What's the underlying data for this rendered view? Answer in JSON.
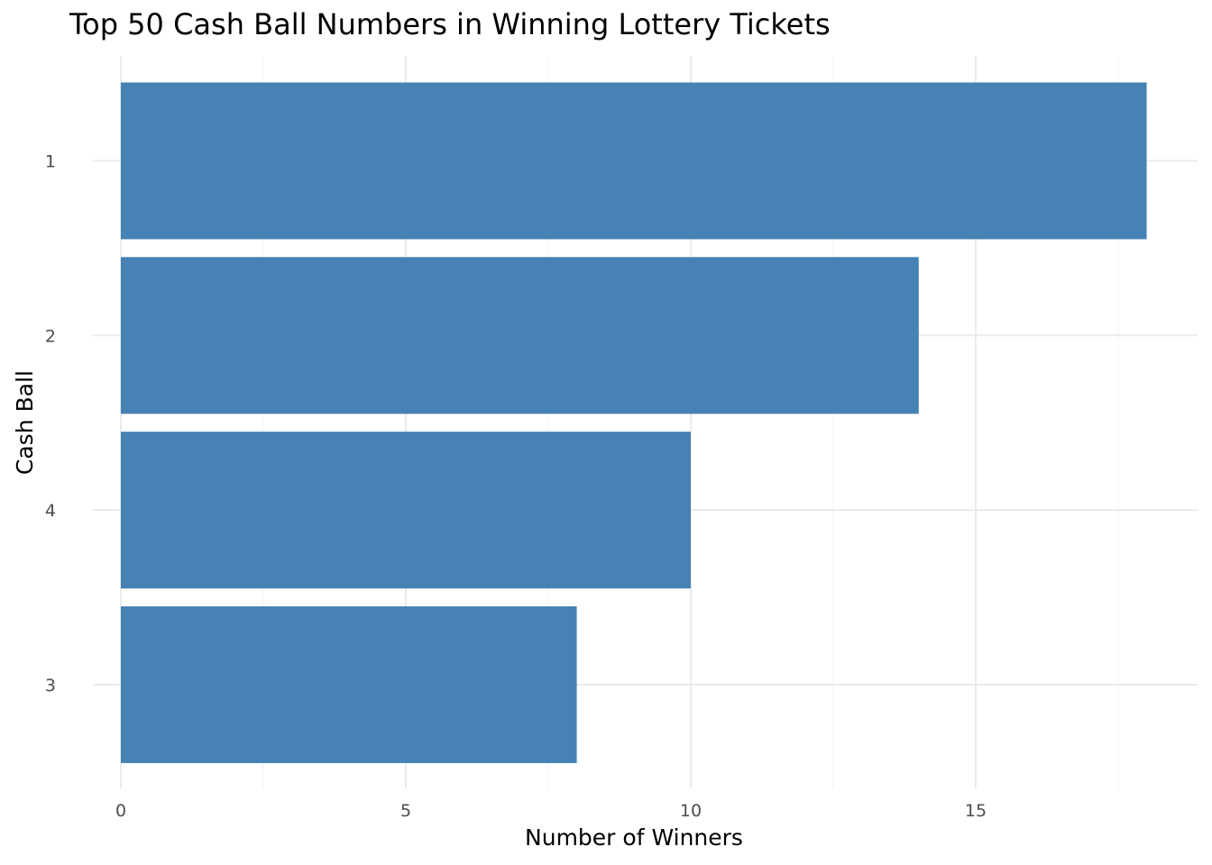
{
  "chart_data": {
    "type": "bar",
    "orientation": "horizontal",
    "title": "Top 50 Cash Ball Numbers in Winning Lottery Tickets",
    "xlabel": "Number of Winners",
    "ylabel": "Cash Ball",
    "categories": [
      "1",
      "2",
      "4",
      "3"
    ],
    "values": [
      18,
      14,
      10,
      8
    ],
    "xlim": [
      0,
      18.9
    ],
    "x_ticks": [
      "0",
      "5",
      "10",
      "15"
    ],
    "grid": true,
    "bar_color": "#4682B4",
    "legend": null
  }
}
